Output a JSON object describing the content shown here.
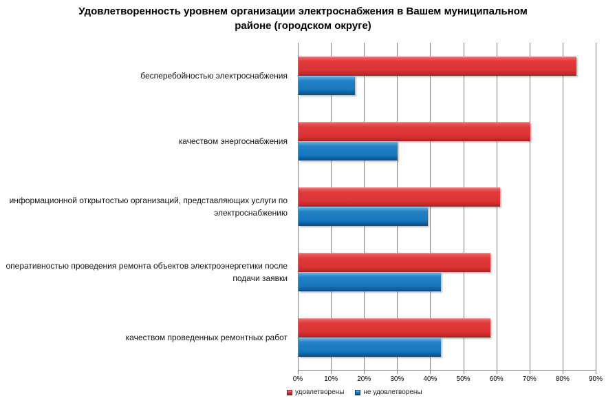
{
  "title": "Удовлетворенность уровнем организации электроснабжения в Вашем муниципальном\nрайоне (городском округе)",
  "chart_data": {
    "type": "bar",
    "orientation": "horizontal",
    "title": "Удовлетворенность уровнем организации электроснабжения в Вашем муниципальном районе (городском округе)",
    "categories": [
      "бесперебойностью  электроснабжения",
      "качеством энергоснабжения",
      "информационной  открытостью  организаций, представляющих услуги по электроснабжению",
      "оперативностью  проведения ремонта  объектов  электроэнергетики после  подачи заявки",
      "качеством проведенных  ремонтных  работ"
    ],
    "series": [
      {
        "name": "удовлетворены",
        "color": "#dc3434",
        "values": [
          84,
          70,
          61,
          58,
          58
        ]
      },
      {
        "name": "не удовлетворены",
        "color": "#1878be",
        "values": [
          17,
          30,
          39,
          43,
          43
        ]
      }
    ],
    "x_ticks": [
      "0%",
      "10%",
      "20%",
      "30%",
      "40%",
      "50%",
      "60%",
      "70%",
      "80%",
      "90%"
    ],
    "xlim": [
      0,
      90
    ],
    "xlabel": "",
    "ylabel": "",
    "grid": "vertical",
    "legend_position": "bottom"
  }
}
